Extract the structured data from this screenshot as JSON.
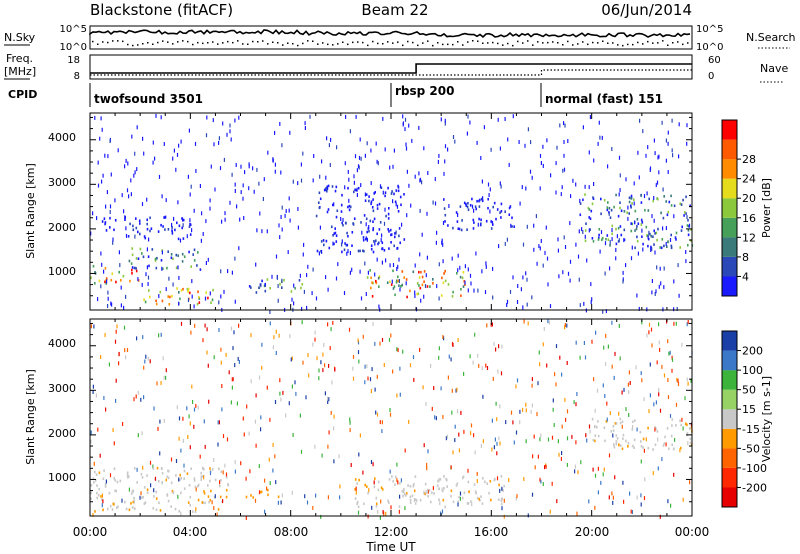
{
  "header": {
    "station": "Blackstone (fitACF)",
    "beam": "Beam 22",
    "date": "06/Jun/2014"
  },
  "noise_panel": {
    "left_label": "N.Sky",
    "right_label": "N.Search",
    "left_ticks": [
      "10^5",
      "10^0"
    ],
    "right_ticks": [
      "10^5",
      "10^0"
    ]
  },
  "freq_panel": {
    "left_label_1": "Freq.",
    "left_label_2": "[MHz]",
    "right_label": "Nave",
    "left_ticks": [
      "18",
      "8"
    ],
    "right_ticks": [
      "60",
      "0"
    ]
  },
  "cpid": {
    "label": "CPID",
    "modes": [
      {
        "name": "twofsound 3501",
        "start_hour": 0
      },
      {
        "name": "rbsp 200",
        "start_hour": 12.0
      },
      {
        "name": "normal (fast) 151",
        "start_hour": 18.0
      }
    ]
  },
  "x_axis": {
    "label": "Time UT",
    "ticks": [
      "00:00",
      "04:00",
      "08:00",
      "12:00",
      "16:00",
      "20:00",
      "00:00"
    ]
  },
  "chart_data": [
    {
      "type": "heatmap",
      "title": "Power",
      "ylabel": "Slant Range [km]",
      "xlabel": "Time UT",
      "xlim": [
        0,
        24
      ],
      "ylim": [
        180,
        4600
      ],
      "yticks": [
        "1000",
        "2000",
        "3000",
        "4000"
      ],
      "colorbar": {
        "label": "Power [dB]",
        "ticks": [
          "4",
          "8",
          "12",
          "16",
          "20",
          "24",
          "28"
        ],
        "colors": [
          "#1a1aff",
          "#2b48b8",
          "#3b7a7a",
          "#46a05a",
          "#8cc83c",
          "#e6dc1e",
          "#ff8c00",
          "#ff5a00",
          "#ff0000"
        ]
      },
      "echo_regions": [
        {
          "t": [
            0.0,
            2.0
          ],
          "range": [
            800,
            1200
          ],
          "level": "high"
        },
        {
          "t": [
            1.5,
            4.5
          ],
          "range": [
            1100,
            1600
          ],
          "level": "medium"
        },
        {
          "t": [
            2.0,
            5.0
          ],
          "range": [
            300,
            700
          ],
          "level": "high"
        },
        {
          "t": [
            0.3,
            4.0
          ],
          "range": [
            1800,
            2300
          ],
          "level": "low"
        },
        {
          "t": [
            6.0,
            8.5
          ],
          "range": [
            600,
            900
          ],
          "level": "medium"
        },
        {
          "t": [
            9.0,
            12.5
          ],
          "range": [
            1500,
            3000
          ],
          "level": "low"
        },
        {
          "t": [
            11.0,
            15.0
          ],
          "range": [
            500,
            1100
          ],
          "level": "high"
        },
        {
          "t": [
            14.0,
            17.0
          ],
          "range": [
            2000,
            2700
          ],
          "level": "low"
        },
        {
          "t": [
            19.5,
            24.0
          ],
          "range": [
            1600,
            2800
          ],
          "level": "medium"
        }
      ]
    },
    {
      "type": "heatmap",
      "title": "Velocity",
      "ylabel": "Slant Range [km]",
      "xlabel": "Time UT",
      "xlim": [
        0,
        24
      ],
      "ylim": [
        180,
        4600
      ],
      "yticks": [
        "1000",
        "2000",
        "3000",
        "4000"
      ],
      "colorbar": {
        "label": "Velocity [m s-1]",
        "ticks": [
          "200",
          "100",
          "50",
          "15",
          "-15",
          "-50",
          "-100",
          "-200"
        ],
        "colors": [
          "#1a3fa6",
          "#3c78c8",
          "#3cb43c",
          "#96d264",
          "#c8c8c8",
          "#ff9b00",
          "#ff6400",
          "#ff2800",
          "#e60000"
        ]
      },
      "echo_regions": [
        {
          "t": [
            0.0,
            5.5
          ],
          "range": [
            300,
            1300
          ],
          "class": "ground scatter"
        },
        {
          "t": [
            10.5,
            16.5
          ],
          "range": [
            400,
            1100
          ],
          "class": "ground scatter"
        },
        {
          "t": [
            20.0,
            24.0
          ],
          "range": [
            1700,
            2400
          ],
          "class": "ground scatter"
        },
        {
          "t": [
            6.0,
            7.5
          ],
          "range": [
            600,
            800
          ],
          "class": "-50"
        }
      ]
    }
  ]
}
